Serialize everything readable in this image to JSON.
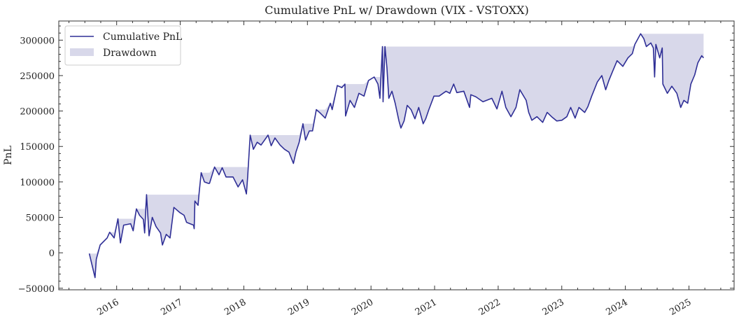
{
  "chart_data": {
    "type": "line",
    "title": "Cumulative PnL w/ Drawdown (VIX - VSTOXX)",
    "xlabel": "",
    "ylabel": "PnL",
    "xlim": [
      2015.09,
      2025.71
    ],
    "ylim": [
      -52200,
      327000
    ],
    "x_ticks": [
      2016,
      2017,
      2018,
      2019,
      2020,
      2021,
      2022,
      2023,
      2024,
      2025
    ],
    "x_tick_labels": [
      "2016",
      "2017",
      "2018",
      "2019",
      "2020",
      "2021",
      "2022",
      "2023",
      "2024",
      "2025"
    ],
    "y_ticks": [
      -50000,
      0,
      50000,
      100000,
      150000,
      200000,
      250000,
      300000
    ],
    "y_tick_labels": [
      "−50000",
      "0",
      "50000",
      "100000",
      "150000",
      "200000",
      "250000",
      "300000"
    ],
    "grid": false,
    "legend": {
      "placement": "top-left",
      "entries": [
        "Cumulative PnL",
        "Drawdown"
      ]
    },
    "colors": {
      "line": "#2f2f96",
      "drawdown": "#d8d8ea"
    },
    "series": [
      {
        "name": "Cumulative PnL",
        "x": [
          2015.57,
          2015.66,
          2015.68,
          2015.74,
          2015.85,
          2015.89,
          2015.96,
          2016.02,
          2016.06,
          2016.11,
          2016.22,
          2016.26,
          2016.31,
          2016.36,
          2016.42,
          2016.44,
          2016.47,
          2016.51,
          2016.56,
          2016.62,
          2016.69,
          2016.72,
          2016.78,
          2016.84,
          2016.9,
          2016.99,
          2017.06,
          2017.1,
          2017.21,
          2017.22,
          2017.23,
          2017.28,
          2017.3,
          2017.33,
          2017.38,
          2017.44,
          2017.46,
          2017.54,
          2017.61,
          2017.66,
          2017.72,
          2017.83,
          2017.91,
          2017.98,
          2018.04,
          2018.06,
          2018.1,
          2018.15,
          2018.21,
          2018.27,
          2018.35,
          2018.38,
          2018.43,
          2018.49,
          2018.57,
          2018.64,
          2018.71,
          2018.78,
          2018.82,
          2018.87,
          2018.93,
          2018.97,
          2019.03,
          2019.08,
          2019.14,
          2019.19,
          2019.28,
          2019.36,
          2019.39,
          2019.47,
          2019.54,
          2019.59,
          2019.6,
          2019.67,
          2019.74,
          2019.81,
          2019.89,
          2019.96,
          2020.05,
          2020.11,
          2020.14,
          2020.18,
          2020.19,
          2020.22,
          2020.25,
          2020.28,
          2020.33,
          2020.38,
          2020.44,
          2020.47,
          2020.52,
          2020.57,
          2020.63,
          2020.69,
          2020.75,
          2020.82,
          2020.86,
          2020.91,
          2020.99,
          2021.07,
          2021.18,
          2021.24,
          2021.3,
          2021.35,
          2021.46,
          2021.55,
          2021.57,
          2021.65,
          2021.76,
          2021.9,
          2021.98,
          2022.06,
          2022.12,
          2022.2,
          2022.28,
          2022.34,
          2022.44,
          2022.48,
          2022.53,
          2022.61,
          2022.7,
          2022.77,
          2022.84,
          2022.92,
          2023.0,
          2023.08,
          2023.14,
          2023.21,
          2023.27,
          2023.36,
          2023.41,
          2023.47,
          2023.56,
          2023.63,
          2023.69,
          2023.74,
          2023.8,
          2023.87,
          2023.96,
          2024.04,
          2024.11,
          2024.15,
          2024.24,
          2024.29,
          2024.33,
          2024.4,
          2024.44,
          2024.46,
          2024.48,
          2024.54,
          2024.58,
          2024.59,
          2024.66,
          2024.73,
          2024.81,
          2024.87,
          2024.92,
          2024.98,
          2025.03,
          2025.09,
          2025.14,
          2025.2,
          2025.23
        ],
        "values": [
          -1000,
          -35000,
          -9000,
          11000,
          21000,
          29000,
          21000,
          48000,
          14000,
          39000,
          41000,
          31000,
          62000,
          53000,
          47000,
          28000,
          82000,
          24000,
          50000,
          37000,
          28000,
          11000,
          26000,
          21000,
          64000,
          57000,
          53000,
          43000,
          39000,
          34000,
          73000,
          67000,
          87000,
          113000,
          100000,
          98000,
          98000,
          121000,
          110000,
          120000,
          107000,
          107000,
          93000,
          103000,
          83000,
          107000,
          166000,
          146000,
          156000,
          152000,
          162000,
          166000,
          151000,
          162000,
          152000,
          146000,
          142000,
          126000,
          142000,
          156000,
          182000,
          159000,
          172000,
          172000,
          202000,
          198000,
          190000,
          211000,
          202000,
          236000,
          233000,
          238000,
          193000,
          215000,
          205000,
          225000,
          221000,
          243000,
          248000,
          238000,
          218000,
          291000,
          213000,
          291000,
          261000,
          218000,
          228000,
          211000,
          186000,
          176000,
          186000,
          208000,
          202000,
          189000,
          205000,
          182000,
          189000,
          202000,
          221000,
          221000,
          228000,
          225000,
          238000,
          226000,
          228000,
          205000,
          223000,
          220000,
          213000,
          218000,
          203000,
          228000,
          205000,
          192000,
          205000,
          230000,
          215000,
          198000,
          187000,
          192000,
          184000,
          198000,
          192000,
          186000,
          187000,
          192000,
          205000,
          190000,
          205000,
          198000,
          206000,
          221000,
          241000,
          250000,
          230000,
          243000,
          256000,
          271000,
          263000,
          275000,
          281000,
          294000,
          309000,
          302000,
          291000,
          296000,
          289000,
          248000,
          294000,
          275000,
          289000,
          238000,
          225000,
          235000,
          225000,
          205000,
          215000,
          211000,
          238000,
          251000,
          268000,
          278000,
          275000
        ]
      }
    ]
  }
}
